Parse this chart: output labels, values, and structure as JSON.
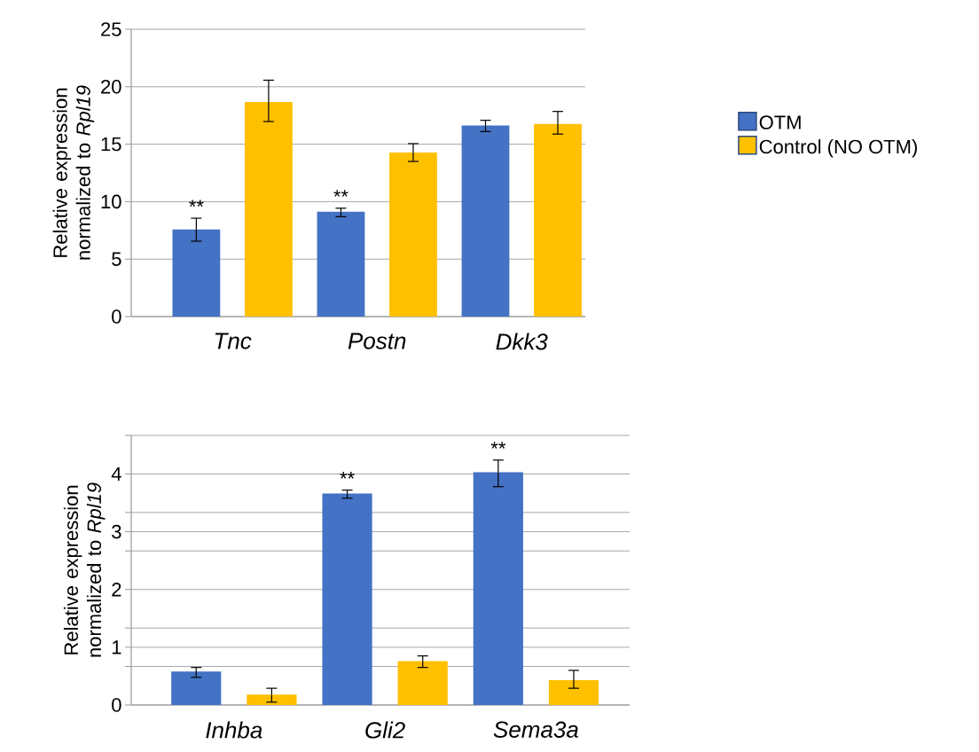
{
  "chart_data": [
    {
      "type": "bar",
      "ylabel": "Relative expression normalized to *Rpl19*",
      "categories": [
        "Tnc",
        "Postn",
        "Dkk3"
      ],
      "series": [
        {
          "name": "OTM",
          "color": "#4472c4",
          "values": [
            7.58,
            9.12,
            16.62
          ],
          "errors": [
            [
              6.56,
              8.56
            ],
            [
              8.69,
              9.43
            ],
            [
              16.1,
              17.08
            ]
          ]
        },
        {
          "name": "Control (NO OTM)",
          "color": "#ffc000",
          "values": [
            18.67,
            14.27,
            16.77
          ],
          "errors": [
            [
              16.97,
              20.57
            ],
            [
              13.5,
              15.05
            ],
            [
              15.88,
              17.85
            ]
          ]
        }
      ],
      "ylim": [
        0,
        25
      ],
      "yticks": [
        0,
        5,
        10,
        15,
        20,
        25
      ],
      "grid": "y",
      "legend": "right",
      "annotations": [
        "**",
        "**"
      ]
    },
    {
      "type": "bar",
      "ylabel": "Relative expression normalized to *Rpl19*",
      "categories": [
        "Inhba",
        "Gli2",
        "Sema3a"
      ],
      "series": [
        {
          "color": "#4472c4",
          "values": [
            0.58,
            3.66,
            4.03
          ],
          "errors": [
            [
              0.48,
              0.65
            ],
            [
              3.58,
              3.72
            ],
            [
              3.78,
              4.24
            ]
          ]
        },
        {
          "color": "#ffc000",
          "values": [
            0.18,
            0.76,
            0.43
          ],
          "errors": [
            [
              0.05,
              0.29
            ],
            [
              0.65,
              0.85
            ],
            [
              0.29,
              0.6
            ]
          ]
        }
      ],
      "ylim": [
        0,
        4.667
      ],
      "yticks": [
        0,
        {
          "value": 0.667,
          "label": null
        },
        1,
        {
          "value": 1.333,
          "label": null
        },
        2,
        {
          "value": 2.667,
          "label": null
        },
        3,
        {
          "value": 3.333,
          "label": null
        },
        4,
        {
          "value": 4.667,
          "label": null
        }
      ],
      "grid": "y",
      "annotations": [
        "**",
        "**"
      ]
    }
  ]
}
